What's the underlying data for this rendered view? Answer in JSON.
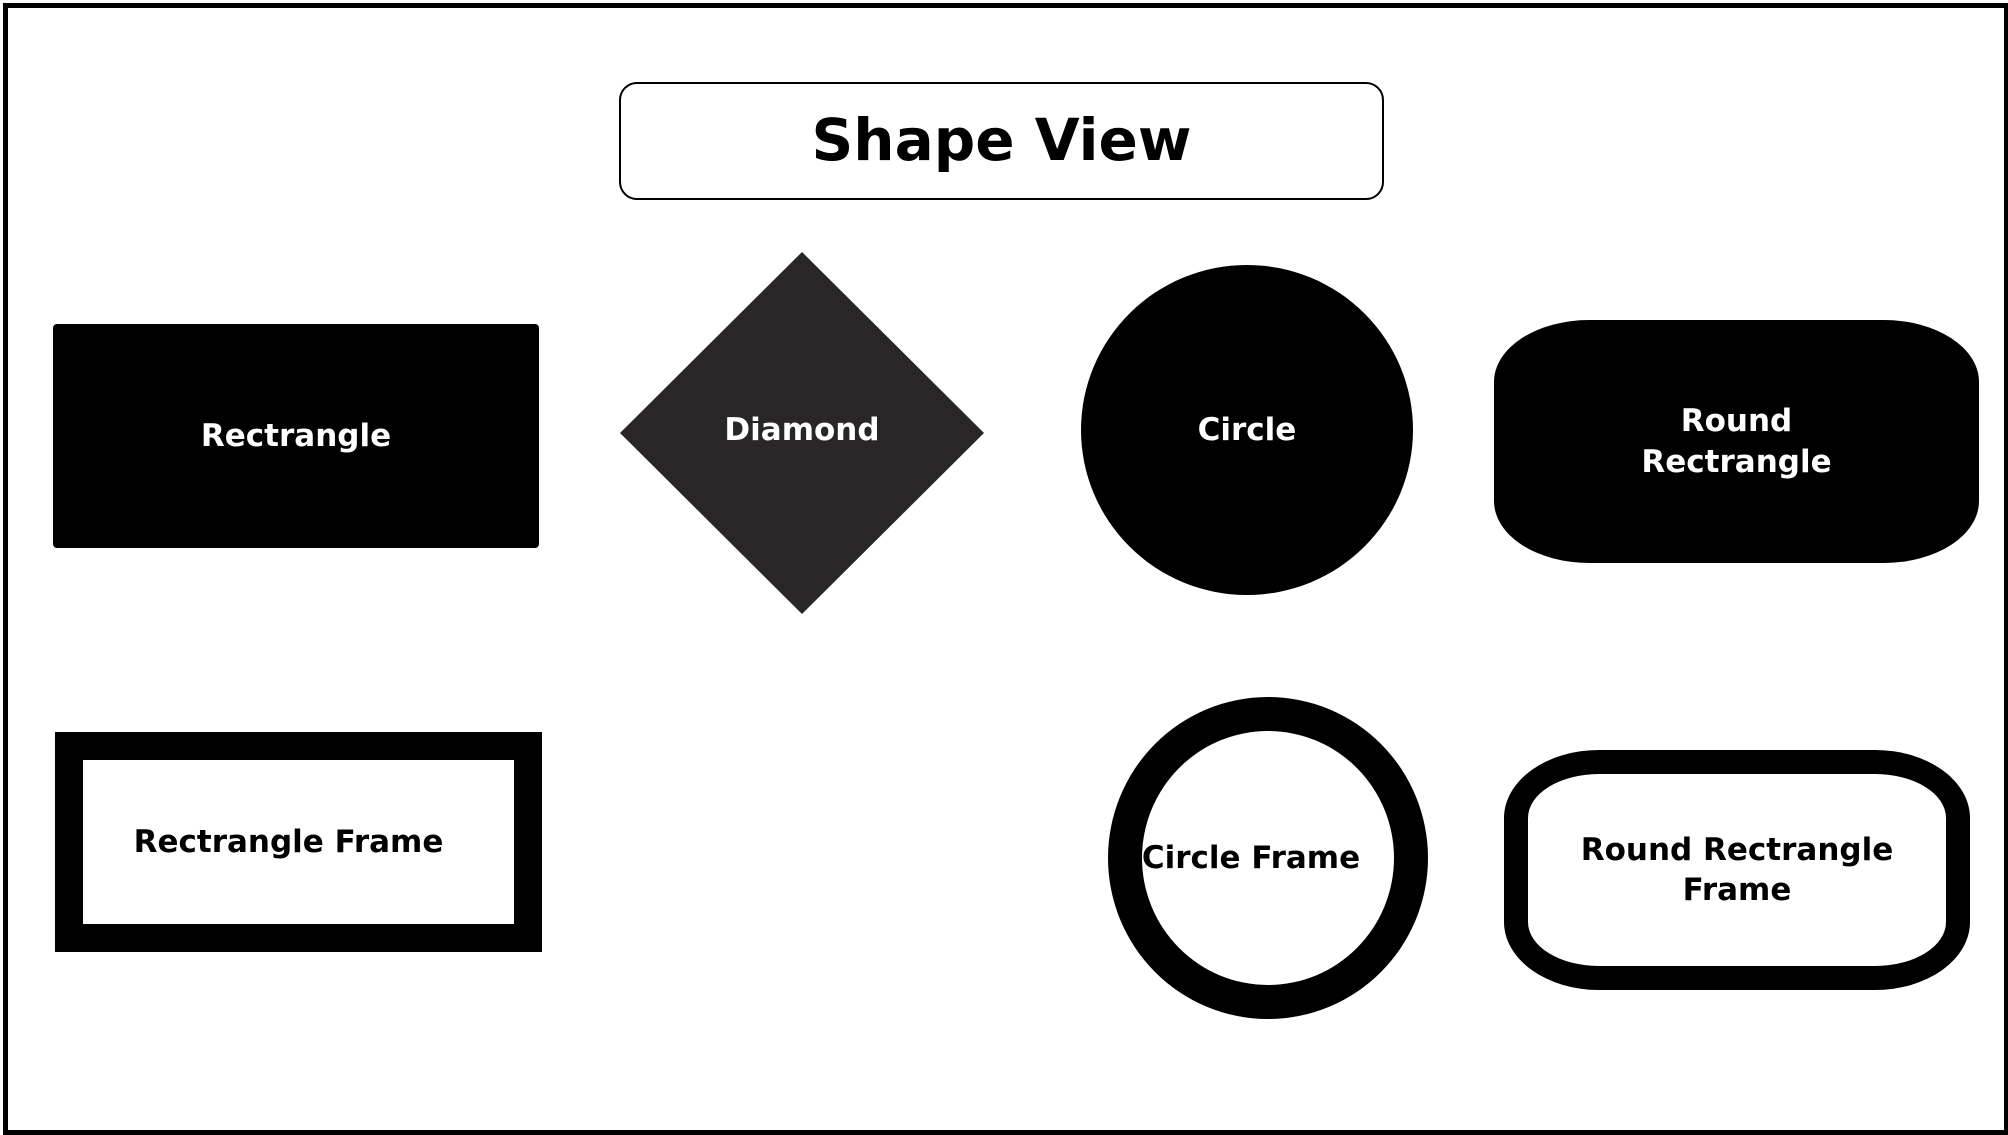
{
  "title": "Shape View",
  "shapes": {
    "rectangle": {
      "label": "Rectrangle",
      "fill": "#000000",
      "text_color": "#ffffff"
    },
    "diamond": {
      "label": "Diamond",
      "fill": "#282627",
      "text_color": "#ffffff"
    },
    "circle": {
      "label": "Circle",
      "fill": "#000000",
      "text_color": "#ffffff"
    },
    "round_rectangle": {
      "label": "Round\nRectrangle",
      "fill": "#000000",
      "text_color": "#ffffff"
    },
    "rectangle_frame": {
      "label": "Rectrangle Frame",
      "stroke": "#000000",
      "text_color": "#000000"
    },
    "circle_frame": {
      "label": "Circle Frame",
      "stroke": "#000000",
      "text_color": "#000000"
    },
    "round_rectangle_frame": {
      "label": "Round Rectrangle\nFrame",
      "stroke": "#000000",
      "text_color": "#000000"
    }
  }
}
